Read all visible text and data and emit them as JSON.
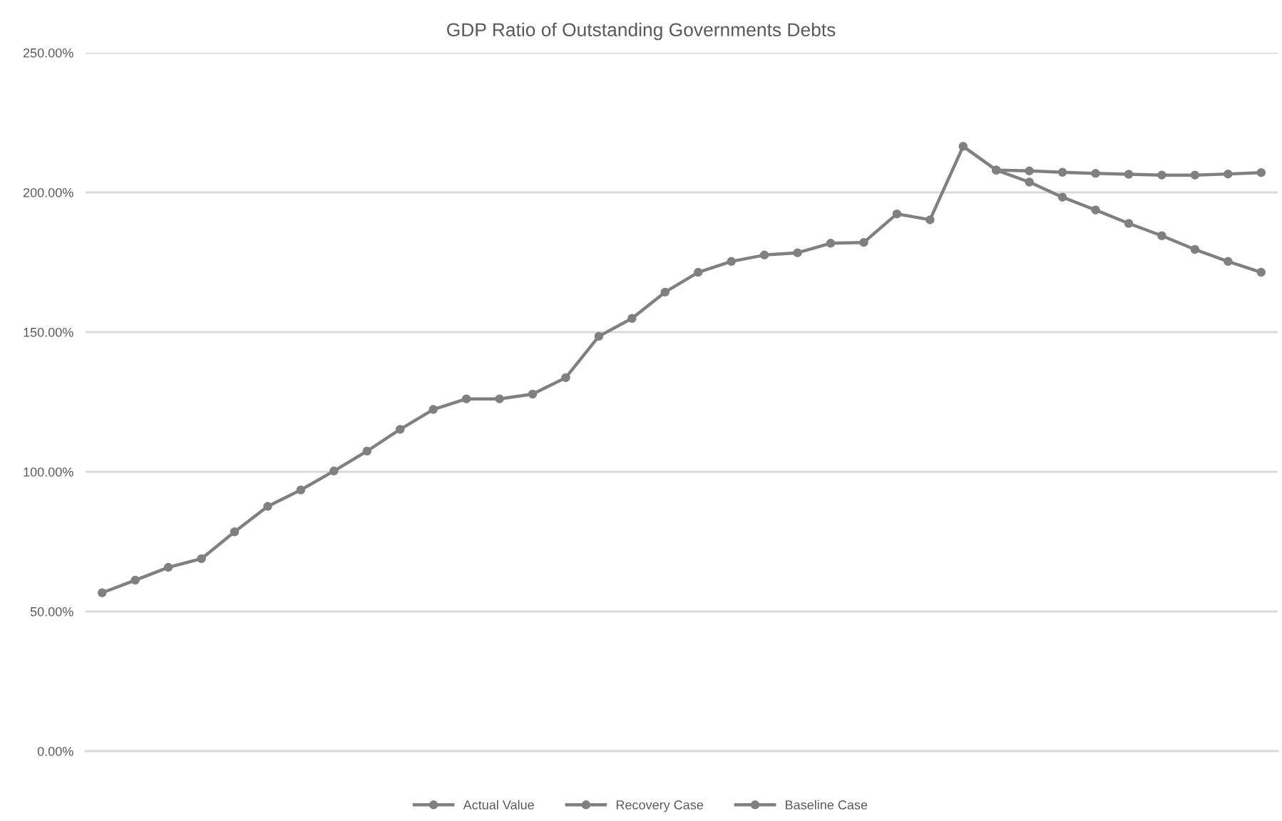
{
  "chart_data": {
    "type": "line",
    "title": "GDP Ratio of Outstanding Governments Debts",
    "categories": [
      null,
      null,
      null,
      null,
      null,
      null,
      null,
      null,
      null,
      null,
      null,
      null,
      null,
      null,
      null,
      null,
      null,
      null,
      null,
      null,
      null,
      null,
      null,
      null,
      null,
      null,
      null,
      null,
      null,
      null,
      null,
      null,
      null,
      null,
      null,
      null
    ],
    "series": [
      {
        "name": "Actual Value",
        "color": "#808080",
        "values": [
          56.7,
          61.2,
          65.8,
          68.9,
          78.5,
          87.6,
          93.5,
          100.3,
          107.4,
          115.2,
          122.3,
          126.1,
          126.1,
          127.8,
          133.7,
          148.5,
          154.9,
          164.3,
          171.4,
          175.3,
          177.6,
          178.4,
          181.8,
          182.1,
          192.3,
          190.2,
          216.5,
          208.0,
          null,
          null,
          null,
          null,
          null,
          null,
          null,
          null
        ]
      },
      {
        "name": "Recovery Case",
        "color": "#808080",
        "values": [
          null,
          null,
          null,
          null,
          null,
          null,
          null,
          null,
          null,
          null,
          null,
          null,
          null,
          null,
          null,
          null,
          null,
          null,
          null,
          null,
          null,
          null,
          null,
          null,
          null,
          null,
          null,
          208.0,
          203.7,
          198.3,
          193.7,
          188.9,
          184.5,
          179.6,
          175.3,
          171.4
        ]
      },
      {
        "name": "Baseline Case",
        "color": "#808080",
        "values": [
          null,
          null,
          null,
          null,
          null,
          null,
          null,
          null,
          null,
          null,
          null,
          null,
          null,
          null,
          null,
          null,
          null,
          null,
          null,
          null,
          null,
          null,
          null,
          null,
          null,
          null,
          null,
          208.0,
          207.7,
          207.2,
          206.8,
          206.5,
          206.2,
          206.2,
          206.6,
          207.1
        ]
      }
    ],
    "ylim": [
      0,
      250
    ],
    "yticks": [
      {
        "value": 0,
        "label": "0.00%"
      },
      {
        "value": 50,
        "label": "50.00%"
      },
      {
        "value": 100,
        "label": "100.00%"
      },
      {
        "value": 150,
        "label": "150.00%"
      },
      {
        "value": 200,
        "label": "200.00%"
      },
      {
        "value": 250,
        "label": "250.00%"
      }
    ],
    "tick_labels": "y",
    "grid": "y",
    "legend": "bottom",
    "marker": "circle",
    "line_style": "solid"
  }
}
